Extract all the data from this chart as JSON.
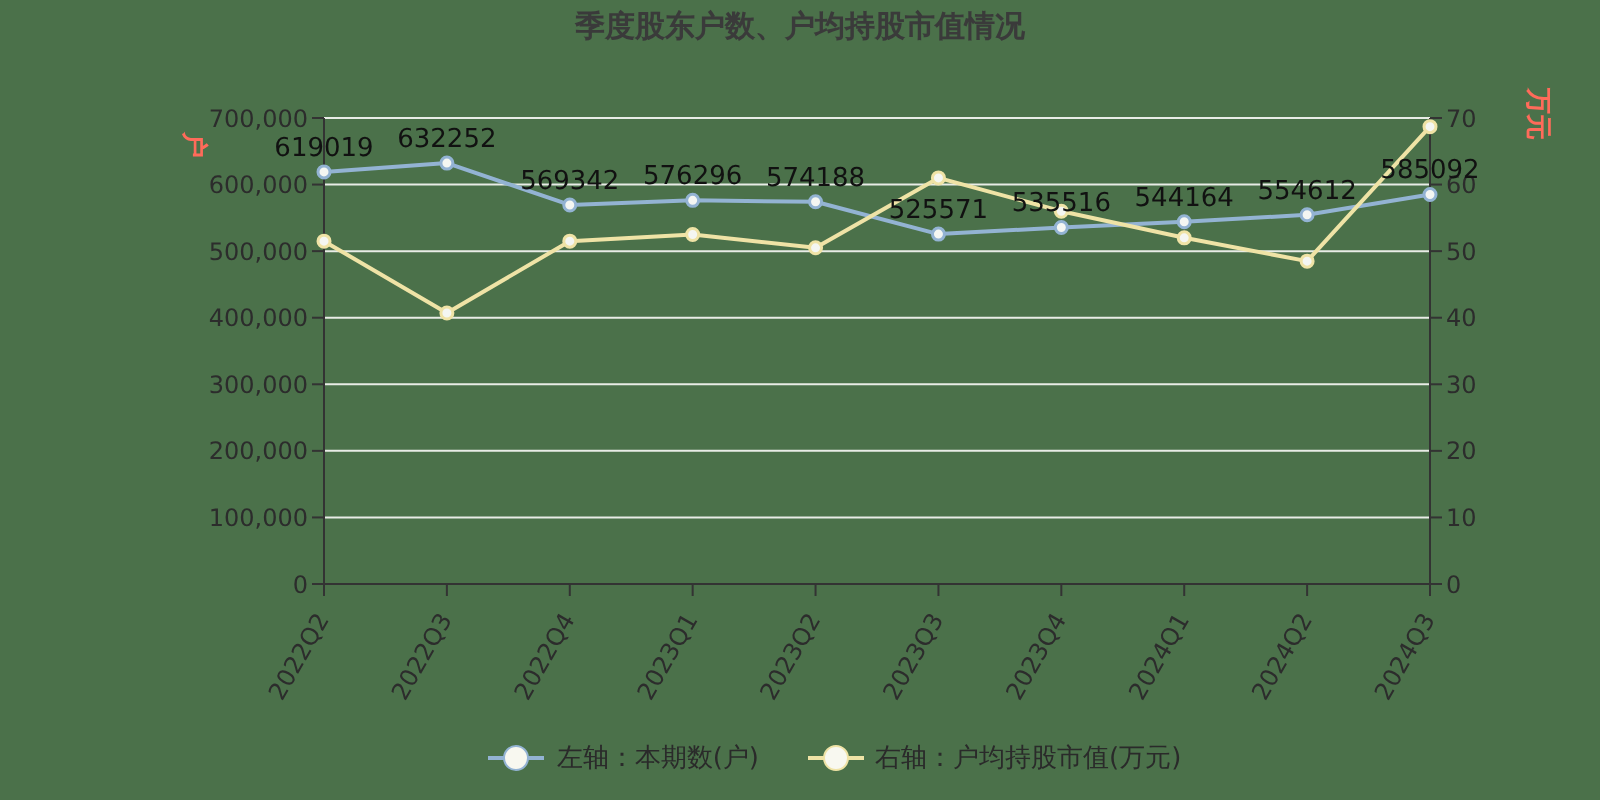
{
  "chart_data": {
    "type": "line",
    "title": "季度股东户数、户均持股市值情况",
    "ylabel": "户",
    "y2label": "万元",
    "categories": [
      "2022Q2",
      "2022Q3",
      "2022Q4",
      "2023Q1",
      "2023Q2",
      "2023Q3",
      "2023Q4",
      "2024Q1",
      "2024Q2",
      "2024Q3"
    ],
    "series": [
      {
        "name": "左轴：本期数(户)",
        "color": "#93b3d3",
        "values": [
          619019,
          632252,
          569342,
          576296,
          574188,
          525571,
          535516,
          544164,
          554612,
          585092
        ],
        "value_labels": [
          "619019",
          "632252",
          "569342",
          "576296",
          "574188",
          "525571",
          "535516",
          "544164",
          "554612",
          "585092"
        ]
      },
      {
        "name": "右轴：户均持股市值(万元)",
        "color": "#efe3a6",
        "axis": "y2",
        "values": [
          51.5,
          40.7,
          51.5,
          52.5,
          50.5,
          61,
          56,
          52,
          48.5,
          68.7
        ]
      }
    ],
    "ylim": [
      0,
      700000
    ],
    "yticks": [
      0,
      {
        "value": 100000,
        "label": "100,000"
      },
      {
        "value": 200000,
        "label": "200,000"
      },
      {
        "value": 300000,
        "label": "300,000"
      },
      {
        "value": 400000,
        "label": "400,000"
      },
      {
        "value": 500000,
        "label": "500,000"
      },
      {
        "value": 600000,
        "label": "600,000"
      },
      {
        "value": 700000,
        "label": "700,000"
      }
    ],
    "y2lim": [
      0,
      70
    ],
    "y2ticks": [
      0,
      10,
      20,
      30,
      40,
      50,
      60,
      70
    ],
    "grid": "y",
    "legend": "bottom",
    "marker": "circle",
    "line_style": "solid"
  }
}
